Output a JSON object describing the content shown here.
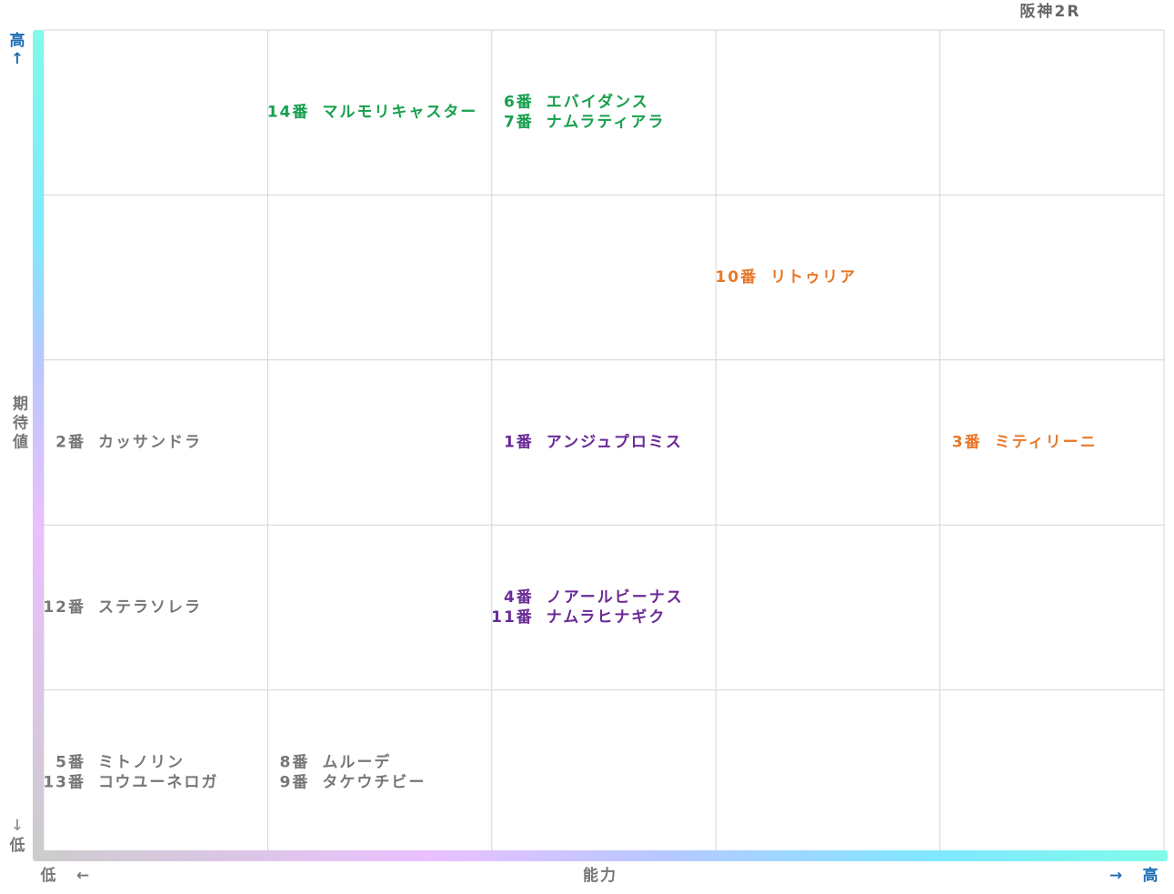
{
  "header": {
    "title": "阪神2R"
  },
  "y_axis": {
    "high": "高",
    "high_arrow": "↑",
    "label": "期待値",
    "low_arrow": "↓",
    "low": "低"
  },
  "x_axis": {
    "low": "低",
    "low_arrow": "←",
    "label": "能力",
    "high_arrow": "→",
    "high": "高"
  },
  "grid": {
    "rows": [
      [
        {
          "entries": []
        },
        {
          "color": "#16a04c",
          "entries": [
            {
              "number": "14番",
              "name": "マルモリキャスター"
            }
          ]
        },
        {
          "color": "#16a04c",
          "entries": [
            {
              "number": "6番",
              "name": "エバイダンス"
            },
            {
              "number": "7番",
              "name": "ナムラティアラ"
            }
          ]
        },
        {
          "entries": []
        },
        {
          "entries": []
        }
      ],
      [
        {
          "entries": []
        },
        {
          "entries": []
        },
        {
          "entries": []
        },
        {
          "color": "#e8782a",
          "entries": [
            {
              "number": "10番",
              "name": "リトゥリア"
            }
          ]
        },
        {
          "entries": []
        }
      ],
      [
        {
          "color": "#777777",
          "entries": [
            {
              "number": "2番",
              "name": "カッサンドラ"
            }
          ]
        },
        {
          "entries": []
        },
        {
          "color": "#6a2a96",
          "entries": [
            {
              "number": "1番",
              "name": "アンジュプロミス"
            }
          ]
        },
        {
          "entries": []
        },
        {
          "color": "#e8782a",
          "entries": [
            {
              "number": "3番",
              "name": "ミティリーニ"
            }
          ]
        }
      ],
      [
        {
          "color": "#777777",
          "entries": [
            {
              "number": "12番",
              "name": "ステラソレラ"
            }
          ]
        },
        {
          "entries": []
        },
        {
          "color": "#6a2a96",
          "entries": [
            {
              "number": "4番",
              "name": "ノアールビーナス"
            },
            {
              "number": "11番",
              "name": "ナムラヒナギク"
            }
          ]
        },
        {
          "entries": []
        },
        {
          "entries": []
        }
      ],
      [
        {
          "color": "#777777",
          "entries": [
            {
              "number": "5番",
              "name": "ミトノリン"
            },
            {
              "number": "13番",
              "name": "コウユーネロガ"
            }
          ]
        },
        {
          "color": "#777777",
          "entries": [
            {
              "number": "8番",
              "name": "ムルーデ"
            },
            {
              "number": "9番",
              "name": "タケウチビー"
            }
          ]
        },
        {
          "entries": []
        },
        {
          "entries": []
        },
        {
          "entries": []
        }
      ]
    ]
  }
}
